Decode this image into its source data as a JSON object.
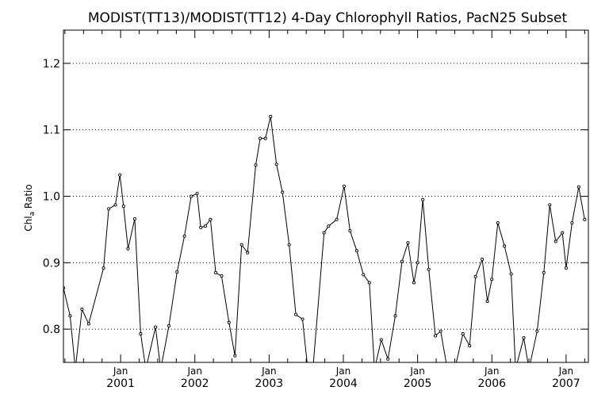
{
  "chart_data": {
    "type": "line",
    "title": "MODIST(TT13)/MODIST(TT12) 4-Day Chlorophyll Ratios, PacN25 Subset",
    "ylabel": {
      "base": "Chl",
      "subscript": "a",
      "suffix": " Ratio"
    },
    "xlabel": "",
    "ylim": [
      0.75,
      1.25
    ],
    "xlim": [
      2000.23,
      2007.3
    ],
    "y_ticks": [
      0.8,
      0.9,
      1.0,
      1.1,
      1.2
    ],
    "y_tick_labels": [
      "0.8",
      "0.9",
      "1.0",
      "1.1",
      "1.2"
    ],
    "x_ticks": [
      {
        "x": 2001.0,
        "month": "Jan",
        "year": "2001"
      },
      {
        "x": 2002.0,
        "month": "Jan",
        "year": "2002"
      },
      {
        "x": 2003.0,
        "month": "Jan",
        "year": "2003"
      },
      {
        "x": 2004.0,
        "month": "Jan",
        "year": "2004"
      },
      {
        "x": 2005.0,
        "month": "Jan",
        "year": "2005"
      },
      {
        "x": 2006.0,
        "month": "Jan",
        "year": "2006"
      },
      {
        "x": 2007.0,
        "month": "Jan",
        "year": "2007"
      }
    ],
    "grid": "horizontal-dotted",
    "series": [
      {
        "color": "#000000",
        "points": [
          [
            2000.23,
            0.862
          ],
          [
            2000.32,
            0.82
          ],
          [
            2000.39,
            0.74
          ],
          [
            2000.48,
            0.83
          ],
          [
            2000.57,
            0.808
          ],
          [
            2000.77,
            0.892
          ],
          [
            2000.84,
            0.981
          ],
          [
            2000.93,
            0.987
          ],
          [
            2000.99,
            1.032
          ],
          [
            2001.04,
            0.985
          ],
          [
            2001.1,
            0.921
          ],
          [
            2001.19,
            0.966
          ],
          [
            2001.27,
            0.793
          ],
          [
            2001.34,
            0.74
          ],
          [
            2001.47,
            0.803
          ],
          [
            2001.54,
            0.74
          ],
          [
            2001.65,
            0.805
          ],
          [
            2001.76,
            0.886
          ],
          [
            2001.86,
            0.94
          ],
          [
            2001.95,
            1.0
          ],
          [
            2002.03,
            1.004
          ],
          [
            2002.08,
            0.953
          ],
          [
            2002.14,
            0.955
          ],
          [
            2002.21,
            0.965
          ],
          [
            2002.28,
            0.885
          ],
          [
            2002.36,
            0.88
          ],
          [
            2002.46,
            0.81
          ],
          [
            2002.54,
            0.76
          ],
          [
            2002.63,
            0.927
          ],
          [
            2002.71,
            0.915
          ],
          [
            2002.82,
            1.047
          ],
          [
            2002.88,
            1.087
          ],
          [
            2002.95,
            1.087
          ],
          [
            2003.02,
            1.12
          ],
          [
            2003.1,
            1.048
          ],
          [
            2003.18,
            1.006
          ],
          [
            2003.27,
            0.927
          ],
          [
            2003.36,
            0.822
          ],
          [
            2003.45,
            0.815
          ],
          [
            2003.52,
            0.74
          ],
          [
            2003.59,
            0.74
          ],
          [
            2003.74,
            0.945
          ],
          [
            2003.8,
            0.955
          ],
          [
            2003.91,
            0.965
          ],
          [
            2004.01,
            1.015
          ],
          [
            2004.09,
            0.948
          ],
          [
            2004.18,
            0.918
          ],
          [
            2004.27,
            0.882
          ],
          [
            2004.35,
            0.87
          ],
          [
            2004.42,
            0.74
          ],
          [
            2004.51,
            0.784
          ],
          [
            2004.6,
            0.755
          ],
          [
            2004.7,
            0.82
          ],
          [
            2004.79,
            0.902
          ],
          [
            2004.87,
            0.93
          ],
          [
            2004.95,
            0.87
          ],
          [
            2005.0,
            0.9
          ],
          [
            2005.07,
            0.995
          ],
          [
            2005.15,
            0.89
          ],
          [
            2005.24,
            0.79
          ],
          [
            2005.31,
            0.797
          ],
          [
            2005.4,
            0.74
          ],
          [
            2005.5,
            0.74
          ],
          [
            2005.61,
            0.793
          ],
          [
            2005.7,
            0.775
          ],
          [
            2005.78,
            0.879
          ],
          [
            2005.87,
            0.905
          ],
          [
            2005.94,
            0.842
          ],
          [
            2006.0,
            0.875
          ],
          [
            2006.08,
            0.96
          ],
          [
            2006.17,
            0.925
          ],
          [
            2006.26,
            0.883
          ],
          [
            2006.32,
            0.74
          ],
          [
            2006.43,
            0.787
          ],
          [
            2006.5,
            0.74
          ],
          [
            2006.61,
            0.797
          ],
          [
            2006.7,
            0.885
          ],
          [
            2006.78,
            0.987
          ],
          [
            2006.86,
            0.932
          ],
          [
            2006.95,
            0.945
          ],
          [
            2007.0,
            0.892
          ],
          [
            2007.08,
            0.96
          ],
          [
            2007.17,
            1.014
          ],
          [
            2007.25,
            0.965
          ]
        ]
      }
    ]
  }
}
